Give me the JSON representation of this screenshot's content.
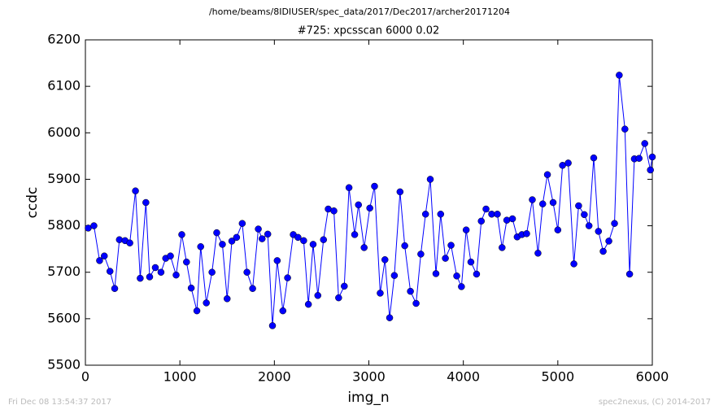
{
  "chart_data": {
    "type": "line",
    "suptitle": "/home/beams/8IDIUSER/spec_data/2017/Dec2017/archer20171204",
    "title": "#725: xpcsscan 6000 0.02",
    "x_label": "img_n",
    "y_label": "ccdc",
    "footer_left": "Fri Dec 08 13:54:37 2017",
    "footer_right": "spec2nexus, (C) 2014-2017",
    "xlim": [
      0,
      6000
    ],
    "xticks": [
      0,
      1000,
      2000,
      3000,
      4000,
      5000,
      6000
    ],
    "ylim": [
      5500,
      6200
    ],
    "yticks": [
      5500,
      5600,
      5700,
      5800,
      5900,
      6000,
      6100,
      6200
    ],
    "x": [
      30,
      90,
      150,
      200,
      260,
      310,
      360,
      420,
      470,
      530,
      580,
      640,
      680,
      740,
      800,
      850,
      900,
      960,
      1020,
      1070,
      1120,
      1180,
      1220,
      1280,
      1340,
      1390,
      1450,
      1500,
      1550,
      1600,
      1660,
      1710,
      1770,
      1830,
      1870,
      1930,
      1980,
      2030,
      2090,
      2140,
      2200,
      2250,
      2310,
      2360,
      2410,
      2460,
      2520,
      2570,
      2630,
      2680,
      2740,
      2790,
      2850,
      2890,
      2950,
      3010,
      3060,
      3120,
      3170,
      3220,
      3270,
      3330,
      3380,
      3440,
      3500,
      3550,
      3600,
      3650,
      3710,
      3760,
      3810,
      3870,
      3930,
      3980,
      4030,
      4080,
      4140,
      4190,
      4240,
      4300,
      4360,
      4410,
      4460,
      4520,
      4570,
      4620,
      4670,
      4730,
      4790,
      4840,
      4890,
      4950,
      5000,
      5050,
      5110,
      5170,
      5220,
      5280,
      5330,
      5380,
      5430,
      5480,
      5540,
      5600,
      5650,
      5710,
      5760,
      5810,
      5860,
      5920,
      5980,
      6000
    ],
    "series": [
      {
        "name": "ccdc",
        "color": "#0000ff",
        "values": [
          5795,
          5800,
          5725,
          5735,
          5702,
          5665,
          5770,
          5768,
          5763,
          5875,
          5687,
          5850,
          5690,
          5710,
          5700,
          5730,
          5735,
          5694,
          5781,
          5722,
          5666,
          5617,
          5755,
          5634,
          5700,
          5785,
          5760,
          5643,
          5767,
          5775,
          5805,
          5700,
          5665,
          5793,
          5772,
          5782,
          5585,
          5725,
          5617,
          5688,
          5781,
          5775,
          5768,
          5631,
          5760,
          5650,
          5770,
          5836,
          5832,
          5645,
          5670,
          5882,
          5781,
          5845,
          5753,
          5838,
          5885,
          5655,
          5727,
          5602,
          5693,
          5873,
          5757,
          5659,
          5633,
          5739,
          5825,
          5900,
          5697,
          5825,
          5730,
          5758,
          5692,
          5669,
          5791,
          5722,
          5696,
          5810,
          5836,
          5825,
          5825,
          5753,
          5812,
          5815,
          5776,
          5781,
          5783,
          5856,
          5741,
          5847,
          5910,
          5850,
          5791,
          5930,
          5935,
          5718,
          5843,
          5824,
          5800,
          5946,
          5788,
          5745,
          5767,
          5805,
          6124,
          6008,
          5696,
          5944,
          5945,
          5977,
          5920,
          5948
        ]
      }
    ]
  }
}
